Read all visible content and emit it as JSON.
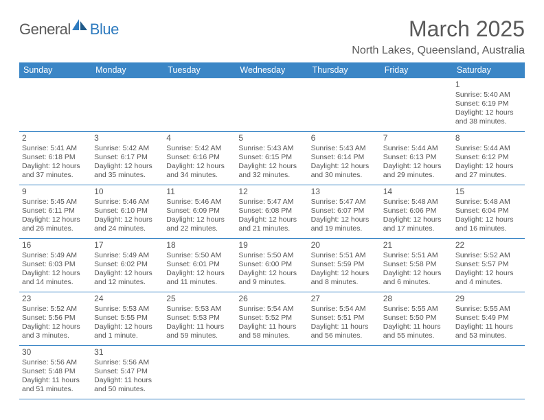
{
  "logo": {
    "text1": "General",
    "text2": "Blue",
    "icon_color": "#2f7bbf"
  },
  "title": "March 2025",
  "location": "North Lakes, Queensland, Australia",
  "colors": {
    "header_bg": "#3b86c6",
    "header_text": "#ffffff",
    "body_text": "#555555",
    "rule": "#3b86c6"
  },
  "typography": {
    "title_fontsize": 32,
    "location_fontsize": 16,
    "dayheader_fontsize": 12.5,
    "cell_fontsize": 10.5
  },
  "day_headers": [
    "Sunday",
    "Monday",
    "Tuesday",
    "Wednesday",
    "Thursday",
    "Friday",
    "Saturday"
  ],
  "weeks": [
    [
      null,
      null,
      null,
      null,
      null,
      null,
      {
        "n": "1",
        "sr": "Sunrise: 5:40 AM",
        "ss": "Sunset: 6:19 PM",
        "d1": "Daylight: 12 hours",
        "d2": "and 38 minutes."
      }
    ],
    [
      {
        "n": "2",
        "sr": "Sunrise: 5:41 AM",
        "ss": "Sunset: 6:18 PM",
        "d1": "Daylight: 12 hours",
        "d2": "and 37 minutes."
      },
      {
        "n": "3",
        "sr": "Sunrise: 5:42 AM",
        "ss": "Sunset: 6:17 PM",
        "d1": "Daylight: 12 hours",
        "d2": "and 35 minutes."
      },
      {
        "n": "4",
        "sr": "Sunrise: 5:42 AM",
        "ss": "Sunset: 6:16 PM",
        "d1": "Daylight: 12 hours",
        "d2": "and 34 minutes."
      },
      {
        "n": "5",
        "sr": "Sunrise: 5:43 AM",
        "ss": "Sunset: 6:15 PM",
        "d1": "Daylight: 12 hours",
        "d2": "and 32 minutes."
      },
      {
        "n": "6",
        "sr": "Sunrise: 5:43 AM",
        "ss": "Sunset: 6:14 PM",
        "d1": "Daylight: 12 hours",
        "d2": "and 30 minutes."
      },
      {
        "n": "7",
        "sr": "Sunrise: 5:44 AM",
        "ss": "Sunset: 6:13 PM",
        "d1": "Daylight: 12 hours",
        "d2": "and 29 minutes."
      },
      {
        "n": "8",
        "sr": "Sunrise: 5:44 AM",
        "ss": "Sunset: 6:12 PM",
        "d1": "Daylight: 12 hours",
        "d2": "and 27 minutes."
      }
    ],
    [
      {
        "n": "9",
        "sr": "Sunrise: 5:45 AM",
        "ss": "Sunset: 6:11 PM",
        "d1": "Daylight: 12 hours",
        "d2": "and 26 minutes."
      },
      {
        "n": "10",
        "sr": "Sunrise: 5:46 AM",
        "ss": "Sunset: 6:10 PM",
        "d1": "Daylight: 12 hours",
        "d2": "and 24 minutes."
      },
      {
        "n": "11",
        "sr": "Sunrise: 5:46 AM",
        "ss": "Sunset: 6:09 PM",
        "d1": "Daylight: 12 hours",
        "d2": "and 22 minutes."
      },
      {
        "n": "12",
        "sr": "Sunrise: 5:47 AM",
        "ss": "Sunset: 6:08 PM",
        "d1": "Daylight: 12 hours",
        "d2": "and 21 minutes."
      },
      {
        "n": "13",
        "sr": "Sunrise: 5:47 AM",
        "ss": "Sunset: 6:07 PM",
        "d1": "Daylight: 12 hours",
        "d2": "and 19 minutes."
      },
      {
        "n": "14",
        "sr": "Sunrise: 5:48 AM",
        "ss": "Sunset: 6:06 PM",
        "d1": "Daylight: 12 hours",
        "d2": "and 17 minutes."
      },
      {
        "n": "15",
        "sr": "Sunrise: 5:48 AM",
        "ss": "Sunset: 6:04 PM",
        "d1": "Daylight: 12 hours",
        "d2": "and 16 minutes."
      }
    ],
    [
      {
        "n": "16",
        "sr": "Sunrise: 5:49 AM",
        "ss": "Sunset: 6:03 PM",
        "d1": "Daylight: 12 hours",
        "d2": "and 14 minutes."
      },
      {
        "n": "17",
        "sr": "Sunrise: 5:49 AM",
        "ss": "Sunset: 6:02 PM",
        "d1": "Daylight: 12 hours",
        "d2": "and 12 minutes."
      },
      {
        "n": "18",
        "sr": "Sunrise: 5:50 AM",
        "ss": "Sunset: 6:01 PM",
        "d1": "Daylight: 12 hours",
        "d2": "and 11 minutes."
      },
      {
        "n": "19",
        "sr": "Sunrise: 5:50 AM",
        "ss": "Sunset: 6:00 PM",
        "d1": "Daylight: 12 hours",
        "d2": "and 9 minutes."
      },
      {
        "n": "20",
        "sr": "Sunrise: 5:51 AM",
        "ss": "Sunset: 5:59 PM",
        "d1": "Daylight: 12 hours",
        "d2": "and 8 minutes."
      },
      {
        "n": "21",
        "sr": "Sunrise: 5:51 AM",
        "ss": "Sunset: 5:58 PM",
        "d1": "Daylight: 12 hours",
        "d2": "and 6 minutes."
      },
      {
        "n": "22",
        "sr": "Sunrise: 5:52 AM",
        "ss": "Sunset: 5:57 PM",
        "d1": "Daylight: 12 hours",
        "d2": "and 4 minutes."
      }
    ],
    [
      {
        "n": "23",
        "sr": "Sunrise: 5:52 AM",
        "ss": "Sunset: 5:56 PM",
        "d1": "Daylight: 12 hours",
        "d2": "and 3 minutes."
      },
      {
        "n": "24",
        "sr": "Sunrise: 5:53 AM",
        "ss": "Sunset: 5:55 PM",
        "d1": "Daylight: 12 hours",
        "d2": "and 1 minute."
      },
      {
        "n": "25",
        "sr": "Sunrise: 5:53 AM",
        "ss": "Sunset: 5:53 PM",
        "d1": "Daylight: 11 hours",
        "d2": "and 59 minutes."
      },
      {
        "n": "26",
        "sr": "Sunrise: 5:54 AM",
        "ss": "Sunset: 5:52 PM",
        "d1": "Daylight: 11 hours",
        "d2": "and 58 minutes."
      },
      {
        "n": "27",
        "sr": "Sunrise: 5:54 AM",
        "ss": "Sunset: 5:51 PM",
        "d1": "Daylight: 11 hours",
        "d2": "and 56 minutes."
      },
      {
        "n": "28",
        "sr": "Sunrise: 5:55 AM",
        "ss": "Sunset: 5:50 PM",
        "d1": "Daylight: 11 hours",
        "d2": "and 55 minutes."
      },
      {
        "n": "29",
        "sr": "Sunrise: 5:55 AM",
        "ss": "Sunset: 5:49 PM",
        "d1": "Daylight: 11 hours",
        "d2": "and 53 minutes."
      }
    ],
    [
      {
        "n": "30",
        "sr": "Sunrise: 5:56 AM",
        "ss": "Sunset: 5:48 PM",
        "d1": "Daylight: 11 hours",
        "d2": "and 51 minutes."
      },
      {
        "n": "31",
        "sr": "Sunrise: 5:56 AM",
        "ss": "Sunset: 5:47 PM",
        "d1": "Daylight: 11 hours",
        "d2": "and 50 minutes."
      },
      null,
      null,
      null,
      null,
      null
    ]
  ]
}
